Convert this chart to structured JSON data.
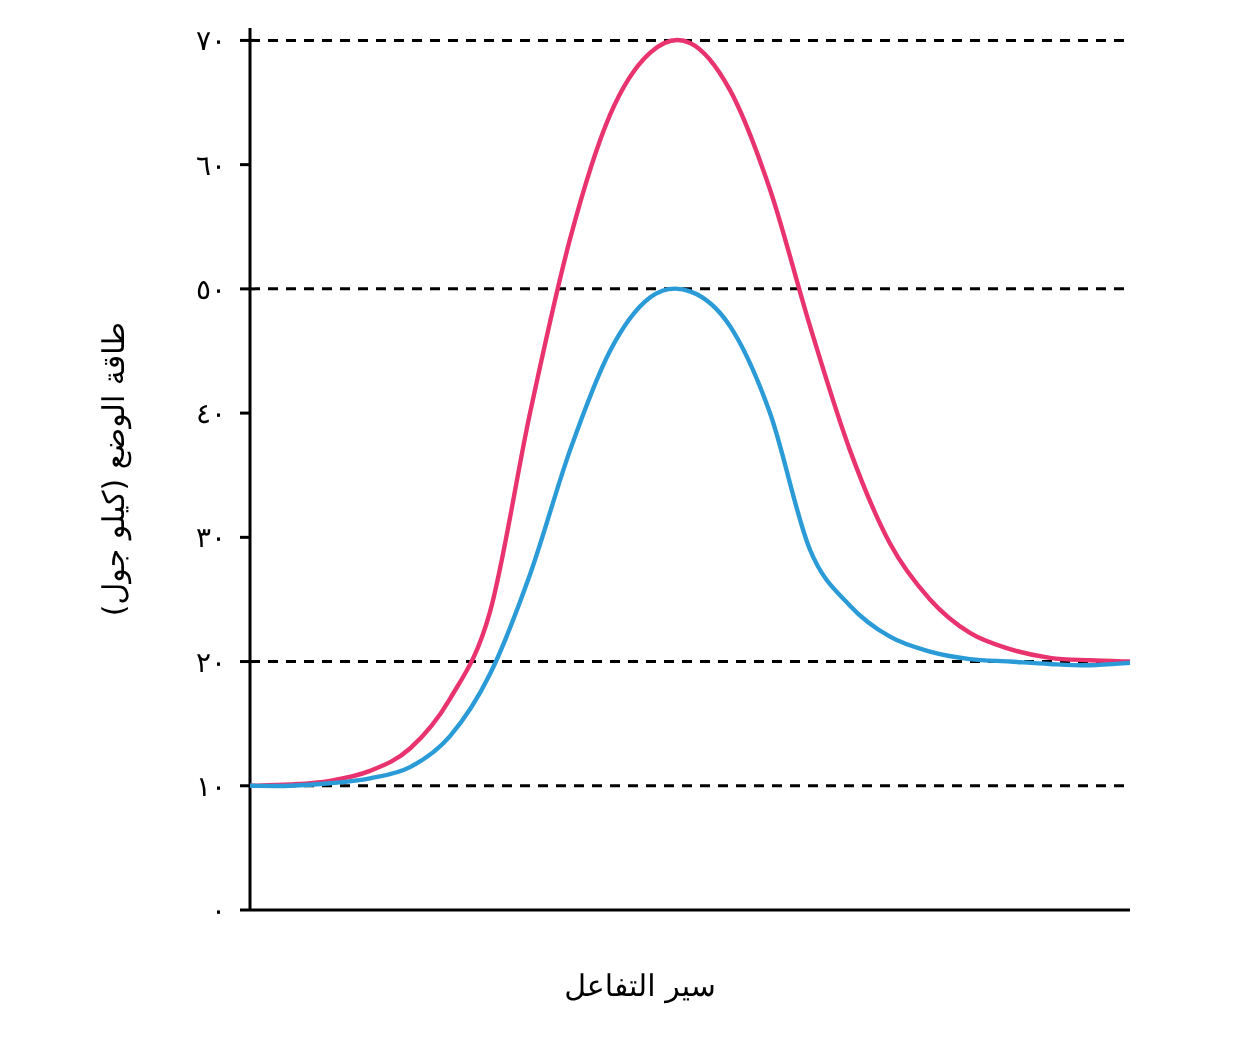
{
  "chart_data": {
    "type": "line",
    "xlabel": "سير التفاعل",
    "ylabel": "طاقة الوضع (كيلو جول)",
    "categories": [
      null,
      null,
      null,
      null,
      null,
      null,
      null,
      null,
      null,
      null,
      null,
      null,
      null,
      null,
      null,
      null,
      null,
      null,
      null,
      null,
      null,
      null,
      null
    ],
    "series": [
      {
        "color": "#e8336f",
        "values": [
          10,
          10.1,
          10.4,
          11.2,
          13,
          17,
          24,
          40,
          54,
          64,
          69,
          69.8,
          66,
          58,
          47,
          37,
          29.5,
          25,
          22.3,
          21,
          20.3,
          20.1,
          20
        ]
      },
      {
        "color": "#2b9bd8",
        "values": [
          10,
          10,
          10.2,
          10.6,
          11.5,
          14,
          19,
          27,
          37,
          45,
          49.3,
          49.8,
          47,
          40,
          29,
          24.5,
          22,
          20.8,
          20.2,
          20,
          19.8,
          19.7,
          19.9
        ]
      }
    ],
    "ylim": [
      0,
      71
    ],
    "yticks": [
      {
        "value": 0,
        "label": "٠"
      },
      {
        "value": 10,
        "label": "١٠"
      },
      {
        "value": 20,
        "label": "٢٠"
      },
      {
        "value": 30,
        "label": "٣٠"
      },
      {
        "value": 40,
        "label": "٤٠"
      },
      {
        "value": 50,
        "label": "٥٠"
      },
      {
        "value": 60,
        "label": "٦٠"
      },
      {
        "value": 70,
        "label": "٧٠"
      }
    ],
    "tick_labels": "y",
    "ref_lines": [
      {
        "axis": "y",
        "value": 10,
        "color": "#000000",
        "line_style": "dashed"
      },
      {
        "axis": "y",
        "value": 20,
        "color": "#000000",
        "line_style": "dashed"
      },
      {
        "axis": "y",
        "value": 50,
        "color": "#000000",
        "line_style": "dashed"
      },
      {
        "axis": "y",
        "value": 70,
        "color": "#000000",
        "line_style": "dashed"
      }
    ]
  }
}
